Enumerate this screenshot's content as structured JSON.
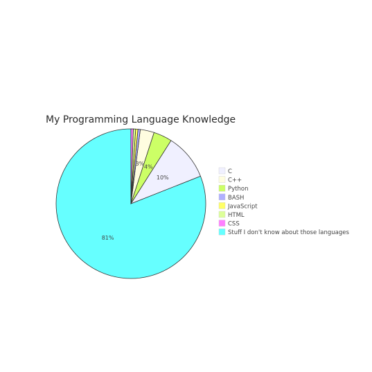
{
  "chart_data": {
    "type": "pie",
    "title": "My Programming Language Knowledge",
    "legend_position": "right",
    "slices": [
      {
        "label": "C",
        "value": 10,
        "display": "10%",
        "color": "#f0f0ff"
      },
      {
        "label": "C++",
        "value": 3,
        "display": "3%",
        "color": "#fffde0"
      },
      {
        "label": "Python",
        "value": 4,
        "display": "4%",
        "color": "#ccff66"
      },
      {
        "label": "BASH",
        "value": 0.5,
        "display": "",
        "color": "#b0b0ff"
      },
      {
        "label": "JavaScript",
        "value": 0.5,
        "display": "",
        "color": "#ffff66"
      },
      {
        "label": "HTML",
        "value": 0.5,
        "display": "",
        "color": "#ddff99"
      },
      {
        "label": "CSS",
        "value": 0.5,
        "display": "",
        "color": "#ff80ff"
      },
      {
        "label": "Stuff I don't know about those languages",
        "value": 81,
        "display": "81%",
        "color": "#66ffff"
      }
    ]
  }
}
